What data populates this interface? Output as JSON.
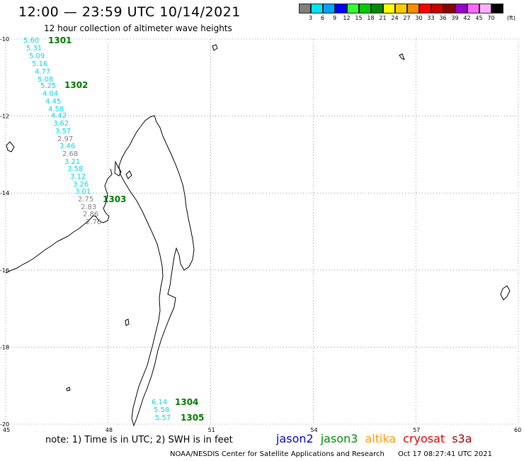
{
  "header": {
    "title": "12:00 — 23:59 UTC 10/14/2021",
    "subtitle": "12 hour collection of altimeter wave heights"
  },
  "legend": {
    "colors": [
      "#808080",
      "#00e5ee",
      "#00a5ff",
      "#0000ff",
      "#33ff33",
      "#00cc00",
      "#008c00",
      "#ffff00",
      "#ffcc00",
      "#ff8c00",
      "#ff0000",
      "#c80000",
      "#8c0000",
      "#9900cc",
      "#ff66ff",
      "#ffb3ff",
      "#000000"
    ],
    "labels": [
      "3",
      "6",
      "9",
      "12",
      "15",
      "18",
      "21",
      "24",
      "27",
      "30",
      "33",
      "36",
      "39",
      "42",
      "45",
      "70"
    ],
    "units": "(ft)"
  },
  "map": {
    "lon_range": [
      45,
      60
    ],
    "lat_range": [
      -20,
      -10
    ],
    "lon_ticks": [
      "45",
      "48",
      "51",
      "54",
      "57",
      "60"
    ],
    "lat_ticks": [
      "-10",
      "-12",
      "-14",
      "-16",
      "-18",
      "-20"
    ],
    "grid": "dotted",
    "wave_heights": [
      {
        "text": "5.60",
        "color": "#00d8e8"
      },
      {
        "text": "5.31",
        "color": "#00d8e8"
      },
      {
        "text": "5.09",
        "color": "#00d8e8"
      },
      {
        "text": "5.16",
        "color": "#00d8e8"
      },
      {
        "text": "4.77",
        "color": "#00d8e8"
      },
      {
        "text": "5.08",
        "color": "#00d8e8"
      },
      {
        "text": "5.25",
        "color": "#00d8e8"
      },
      {
        "text": "4.04",
        "color": "#00d8e8"
      },
      {
        "text": "4.45",
        "color": "#00d8e8"
      },
      {
        "text": "4.58",
        "color": "#00d8e8"
      },
      {
        "text": "4.42",
        "color": "#00d8e8"
      },
      {
        "text": "3.62",
        "color": "#00d8e8"
      },
      {
        "text": "3.57",
        "color": "#00d8e8"
      },
      {
        "text": "2.97",
        "color": "#808080"
      },
      {
        "text": "3.46",
        "color": "#00d8e8"
      },
      {
        "text": "2.68",
        "color": "#808080"
      },
      {
        "text": "3.21",
        "color": "#00d8e8"
      },
      {
        "text": "3.58",
        "color": "#00d8e8"
      },
      {
        "text": "3.12",
        "color": "#00d8e8"
      },
      {
        "text": "3.26",
        "color": "#00d8e8"
      },
      {
        "text": "3.01",
        "color": "#00d8e8"
      },
      {
        "text": "2.75",
        "color": "#808080"
      },
      {
        "text": "2.83",
        "color": "#808080"
      },
      {
        "text": "2.86",
        "color": "#808080"
      },
      {
        "text": "2.78",
        "color": "#808080"
      },
      {
        "text": "6.14",
        "color": "#00d8e8"
      },
      {
        "text": "5.58",
        "color": "#00d8e8"
      },
      {
        "text": "5.57",
        "color": "#00d8e8"
      }
    ],
    "pass_times": [
      {
        "text": "1301",
        "color": "#007800"
      },
      {
        "text": "1302",
        "color": "#007800"
      },
      {
        "text": "1303",
        "color": "#007800"
      },
      {
        "text": "1304",
        "color": "#007800"
      },
      {
        "text": "1305",
        "color": "#007800"
      }
    ]
  },
  "footer": {
    "note": "note:  1) Time is in UTC;  2) SWH is in feet",
    "satellites": [
      {
        "name": "jason2",
        "color": "#0000cc"
      },
      {
        "name": "jason3",
        "color": "#008800"
      },
      {
        "name": "altika",
        "color": "#ff9900"
      },
      {
        "name": "cryosat",
        "color": "#dd0000"
      },
      {
        "name": "s3a",
        "color": "#990000"
      }
    ],
    "credit": "NOAA/NESDIS Center for Satellite Applications and Research",
    "generated": "Oct 17 08:27:41 UTC 2021"
  }
}
